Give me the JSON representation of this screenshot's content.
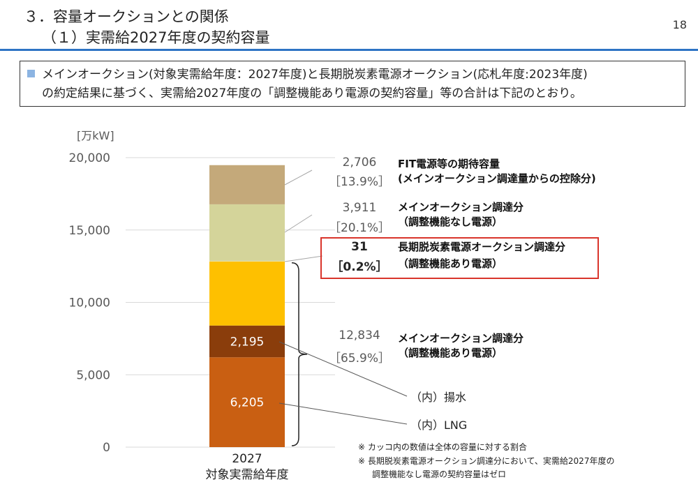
{
  "header": {
    "title_line1": "３．容量オークションとの関係",
    "title_line2": "（１）実需給2027年度の契約容量",
    "page_number": "18"
  },
  "summary": {
    "line1": "メインオークション(対象実需給年度：2027年度)と長期脱炭素電源オークション(応札年度:2023年度)",
    "line2": "の約定結果に基づく、実需給2027年度の「調整機能あり電源の契約容量」等の合計は下記のとおり。"
  },
  "colors": {
    "accent": "#2e74c4",
    "fit": "#c4a97a",
    "main_no_adjust": "#d4d49a",
    "long_term": "#e3e3b8",
    "main_adjust": "#fec000",
    "pumped": "#8a3d0b",
    "lng": "#c95f12",
    "highlight_box": "#d9342b"
  },
  "chart_data": {
    "type": "bar",
    "stacked": true,
    "ylabel": "[万kW]",
    "ylim": [
      0,
      20000
    ],
    "yticks": [
      0,
      5000,
      10000,
      15000,
      20000
    ],
    "ytick_labels": [
      "0",
      "5,000",
      "10,000",
      "15,000",
      "20,000"
    ],
    "grid": true,
    "categories": [
      "2027"
    ],
    "category_caption": "対象実需給年度",
    "segments": [
      {
        "key": "lng",
        "value": 6205,
        "label": "6,205",
        "color": "#c95f12"
      },
      {
        "key": "pumped",
        "value": 2195,
        "label": "2,195",
        "color": "#8a3d0b"
      },
      {
        "key": "main_adjust_other",
        "value": 4434,
        "color": "#fec000"
      },
      {
        "key": "long_term",
        "value": 31,
        "color": "#e3e3b8"
      },
      {
        "key": "main_no_adjust",
        "value": 3911,
        "color": "#d4d49a"
      },
      {
        "key": "fit",
        "value": 2706,
        "color": "#c4a97a"
      }
    ],
    "annotations": [
      {
        "key": "fit",
        "value": "2,706",
        "pct": "［13.9%］",
        "name1": "FIT電源等の期待容量",
        "name2": "(メインオークション調達量からの控除分)",
        "highlight": false
      },
      {
        "key": "main_no_adjust",
        "value": "3,911",
        "pct": "［20.1%］",
        "name1": "メインオークション調達分",
        "name2": "（調整機能なし電源）",
        "highlight": false
      },
      {
        "key": "long_term",
        "value": "31",
        "pct": "［0.2%］",
        "name1": "長期脱炭素電源オークション調達分",
        "name2": "（調整機能あり電源）",
        "highlight": true
      },
      {
        "key": "main_adjust",
        "value": "12,834",
        "pct": "［65.9%］",
        "name1": "メインオークション調達分",
        "name2": "（調整機能あり電源）",
        "highlight": false
      }
    ],
    "breakdown_labels": {
      "pumped": "（内）揚水",
      "lng": "（内）LNG"
    },
    "notes": [
      "※ カッコ内の数値は全体の容量に対する割合",
      "※ 長期脱炭素電源オークション調達分において、実需給2027年度の",
      "調整機能なし電源の契約容量はゼロ"
    ]
  }
}
